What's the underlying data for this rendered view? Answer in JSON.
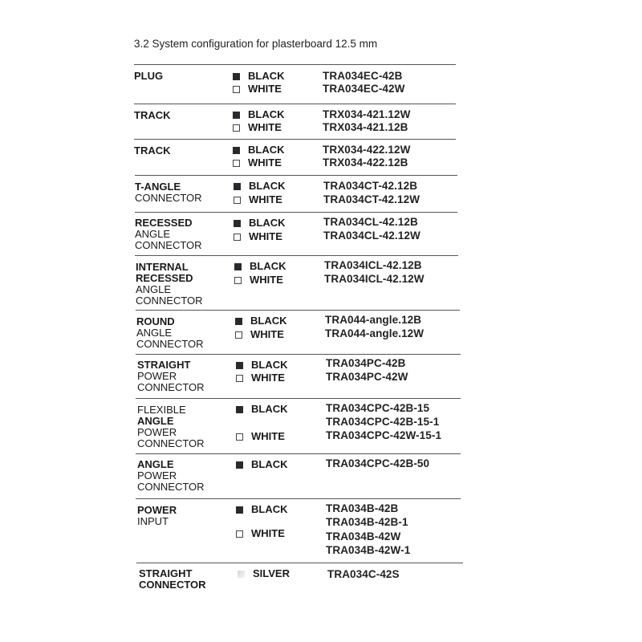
{
  "title": "3.2 System configuration for plasterboard 12.5 mm",
  "rows": [
    {
      "name": [
        {
          "text": "PLUG",
          "bold": true
        }
      ],
      "colors": [
        {
          "label": "BLACK",
          "swatch": "black"
        },
        {
          "label": "WHITE",
          "swatch": "white"
        }
      ],
      "codes": [
        "TRA034EC-42B",
        "TRA034EC-42W"
      ]
    },
    {
      "name": [
        {
          "text": "TRACK",
          "bold": true
        }
      ],
      "colors": [
        {
          "label": "BLACK",
          "swatch": "black"
        },
        {
          "label": "WHITE",
          "swatch": "white"
        }
      ],
      "codes": [
        "TRX034-421.12W",
        "TRX034-421.12B"
      ]
    },
    {
      "name": [
        {
          "text": "TRACK",
          "bold": true
        }
      ],
      "colors": [
        {
          "label": "BLACK",
          "swatch": "black"
        },
        {
          "label": "WHITE",
          "swatch": "white"
        }
      ],
      "codes": [
        "TRX034-422.12W",
        "TRX034-422.12B"
      ]
    },
    {
      "name": [
        {
          "text": "T-ANGLE",
          "bold": true
        },
        {
          "text": "CONNECTOR",
          "bold": false
        }
      ],
      "colors": [
        {
          "label": "BLACK",
          "swatch": "black"
        },
        {
          "label": "WHITE",
          "swatch": "white"
        }
      ],
      "codes": [
        "TRA034CT-42.12B",
        "TRA034CT-42.12W"
      ]
    },
    {
      "name": [
        {
          "text": "RECESSED",
          "bold": true
        },
        {
          "text": "ANGLE",
          "bold": false
        },
        {
          "text": "CONNECTOR",
          "bold": false
        }
      ],
      "colors": [
        {
          "label": "BLACK",
          "swatch": "black"
        },
        {
          "label": "WHITE",
          "swatch": "white"
        }
      ],
      "codes": [
        "TRA034CL-42.12B",
        "TRA034CL-42.12W"
      ]
    },
    {
      "name": [
        {
          "text": "INTERNAL",
          "bold": true
        },
        {
          "text": "RECESSED",
          "bold": true
        },
        {
          "text": "ANGLE",
          "bold": false
        },
        {
          "text": "CONNECTOR",
          "bold": false
        }
      ],
      "colors": [
        {
          "label": "BLACK",
          "swatch": "black"
        },
        {
          "label": "WHITE",
          "swatch": "white"
        }
      ],
      "codes": [
        "TRA034ICL-42.12B",
        "TRA034ICL-42.12W"
      ]
    },
    {
      "name": [
        {
          "text": "ROUND",
          "bold": true
        },
        {
          "text": "ANGLE",
          "bold": false
        },
        {
          "text": "CONNECTOR",
          "bold": false
        }
      ],
      "colors": [
        {
          "label": "BLACK",
          "swatch": "black"
        },
        {
          "label": "WHITE",
          "swatch": "white"
        }
      ],
      "codes": [
        "TRA044-angle.12B",
        "TRA044-angle.12W"
      ]
    },
    {
      "name": [
        {
          "text": "STRAIGHT",
          "bold": true
        },
        {
          "text": "POWER",
          "bold": false
        },
        {
          "text": "CONNECTOR",
          "bold": false
        }
      ],
      "colors": [
        {
          "label": "BLACK",
          "swatch": "black"
        },
        {
          "label": "WHITE",
          "swatch": "white"
        }
      ],
      "codes": [
        "TRA034PC-42B",
        "TRA034PC-42W"
      ]
    },
    {
      "name": [
        {
          "text": "FLEXIBLE",
          "bold": false
        },
        {
          "text": "ANGLE",
          "bold": true
        },
        {
          "text": "POWER",
          "bold": false
        },
        {
          "text": "CONNECTOR",
          "bold": false
        }
      ],
      "colors": [
        {
          "label": "BLACK",
          "swatch": "black"
        },
        {
          "label": "WHITE",
          "swatch": "white"
        }
      ],
      "codes": [
        "TRA034CPC-42B-15",
        "TRA034CPC-42B-15-1",
        "TRA034CPC-42W-15-1"
      ]
    },
    {
      "name": [
        {
          "text": "ANGLE",
          "bold": true
        },
        {
          "text": "POWER",
          "bold": false
        },
        {
          "text": "CONNECTOR",
          "bold": false
        }
      ],
      "colors": [
        {
          "label": "BLACK",
          "swatch": "black"
        }
      ],
      "codes": [
        "TRA034CPC-42B-50"
      ]
    },
    {
      "name": [
        {
          "text": "POWER",
          "bold": true
        },
        {
          "text": "INPUT",
          "bold": false
        }
      ],
      "colors": [
        {
          "label": "BLACK",
          "swatch": "black"
        },
        {
          "label": "WHITE",
          "swatch": "white"
        }
      ],
      "codes": [
        "TRA034B-42B",
        "TRA034B-42B-1",
        "TRA034B-42W",
        "TRA034B-42W-1"
      ]
    },
    {
      "name": [
        {
          "text": "STRAIGHT",
          "bold": true
        },
        {
          "text": "CONNECTOR",
          "bold": true
        }
      ],
      "colors": [
        {
          "label": "SILVER",
          "swatch": "silver"
        }
      ],
      "codes": [
        "TRA034C-42S"
      ]
    }
  ]
}
